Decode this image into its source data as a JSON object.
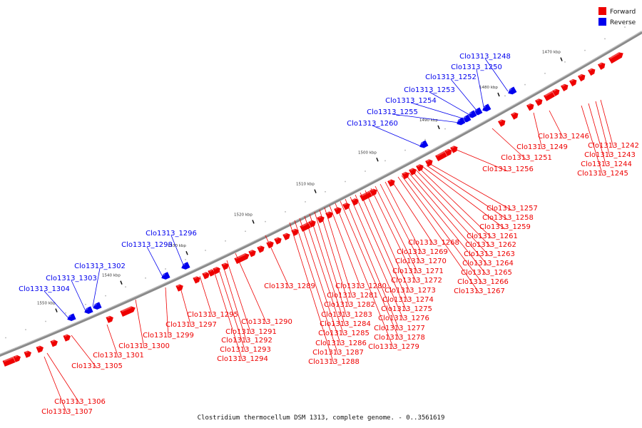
{
  "legend": {
    "forward_label": "Forward",
    "reverse_label": "Reverse",
    "forward_color": "#ee0000",
    "reverse_color": "#0000ee"
  },
  "caption": "Clostridium thermocellum DSM 1313, complete genome. - 0..3561619",
  "backbone_color": "#888888",
  "kbp_marks": [
    "1470 kbp",
    "1480 kbp",
    "1490 kbp",
    "1500 kbp",
    "1510 kbp",
    "1520 kbp",
    "1530 kbp",
    "1540 kbp",
    "1550 kbp"
  ],
  "forward_genes": [
    "Clo1313_1242",
    "Clo1313_1243",
    "Clo1313_1244",
    "Clo1313_1245",
    "Clo1313_1246",
    "Clo1313_1249",
    "Clo1313_1251",
    "Clo1313_1256",
    "Clo1313_1257",
    "Clo1313_1258",
    "Clo1313_1259",
    "Clo1313_1261",
    "Clo1313_1262",
    "Clo1313_1263",
    "Clo1313_1264",
    "Clo1313_1265",
    "Clo1313_1266",
    "Clo1313_1267",
    "Clo1313_1268",
    "Clo1313_1269",
    "Clo1313_1270",
    "Clo1313_1271",
    "Clo1313_1272",
    "Clo1313_1273",
    "Clo1313_1274",
    "Clo1313_1275",
    "Clo1313_1276",
    "Clo1313_1277",
    "Clo1313_1278",
    "Clo1313_1279",
    "Clo1313_1280",
    "Clo1313_1281",
    "Clo1313_1282",
    "Clo1313_1283",
    "Clo1313_1284",
    "Clo1313_1285",
    "Clo1313_1286",
    "Clo1313_1287",
    "Clo1313_1288",
    "Clo1313_1289",
    "Clo1313_1290",
    "Clo1313_1291",
    "Clo1313_1292",
    "Clo1313_1293",
    "Clo1313_1294",
    "Clo1313_1295",
    "Clo1313_1297",
    "Clo1313_1299",
    "Clo1313_1300",
    "Clo1313_1301",
    "Clo1313_1305",
    "Clo1313_1306",
    "Clo1313_1307"
  ],
  "reverse_genes": [
    "Clo1313_1248",
    "Clo1313_1250",
    "Clo1313_1252",
    "Clo1313_1253",
    "Clo1313_1254",
    "Clo1313_1255",
    "Clo1313_1260",
    "Clo1313_1296",
    "Clo1313_1298",
    "Clo1313_1302",
    "Clo1313_1303",
    "Clo1313_1304"
  ]
}
